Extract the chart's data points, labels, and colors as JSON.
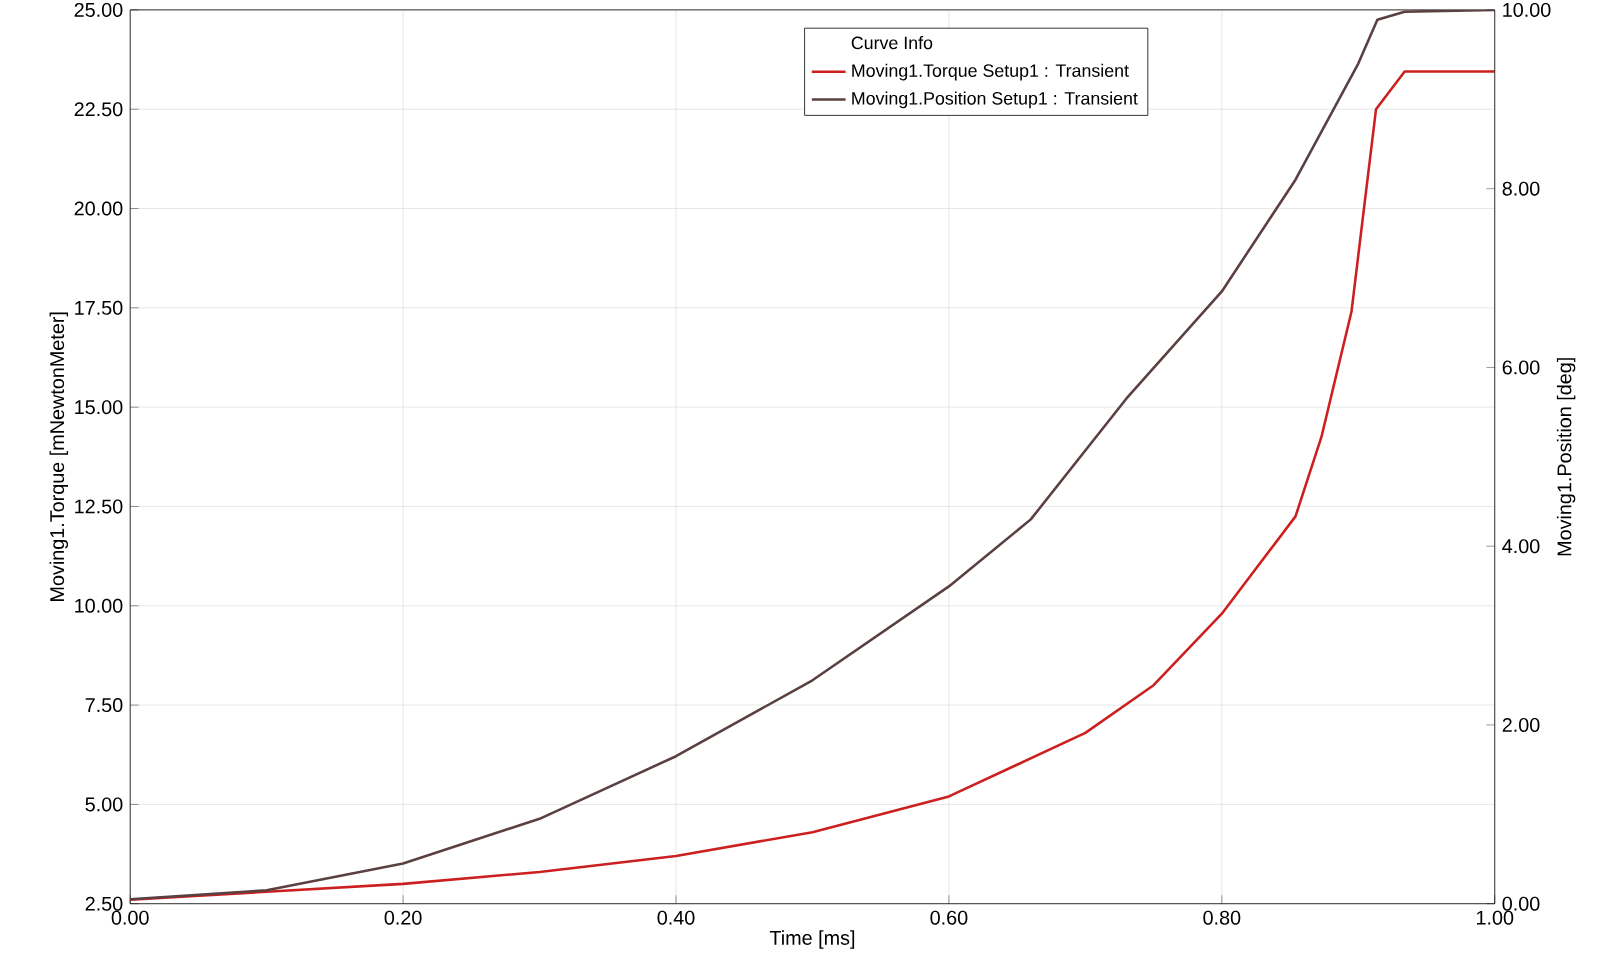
{
  "chart_data": {
    "type": "line",
    "xlabel": "Time [ms]",
    "ylabel": "Moving1.Torque [mNewtonMeter]",
    "y2label": "Moving1.Position [deg]",
    "legend_title": "Curve Info",
    "xlim": [
      0,
      1
    ],
    "ylim": [
      2.5,
      25
    ],
    "y2lim": [
      0,
      10
    ],
    "xticks": [
      {
        "value": 0,
        "label": "0.00"
      },
      {
        "value": 0.2,
        "label": "0.20"
      },
      {
        "value": 0.4,
        "label": "0.40"
      },
      {
        "value": 0.6,
        "label": "0.60"
      },
      {
        "value": 0.8,
        "label": "0.80"
      },
      {
        "value": 1,
        "label": "1.00"
      }
    ],
    "yticks": [
      {
        "value": 2.5,
        "label": "2.50"
      },
      {
        "value": 5,
        "label": "5.00"
      },
      {
        "value": 7.5,
        "label": "7.50"
      },
      {
        "value": 10,
        "label": "10.00"
      },
      {
        "value": 12.5,
        "label": "12.50"
      },
      {
        "value": 15,
        "label": "15.00"
      },
      {
        "value": 17.5,
        "label": "17.50"
      },
      {
        "value": 20,
        "label": "20.00"
      },
      {
        "value": 22.5,
        "label": "22.50"
      },
      {
        "value": 25,
        "label": "25.00"
      }
    ],
    "y2ticks": [
      {
        "value": 0,
        "label": "0.00"
      },
      {
        "value": 2,
        "label": "2.00"
      },
      {
        "value": 4,
        "label": "4.00"
      },
      {
        "value": 6,
        "label": "6.00"
      },
      {
        "value": 8,
        "label": "8.00"
      },
      {
        "value": 10,
        "label": "10.00"
      }
    ],
    "grid": true,
    "legend": "top",
    "series": [
      {
        "name": "Moving1.Torque Setup1 : Transient",
        "color": "#cc2020",
        "x": [
          0,
          0.1,
          0.2,
          0.3,
          0.4,
          0.5,
          0.6,
          0.7,
          0.75,
          0.8,
          0.854,
          0.873,
          0.895,
          0.913,
          0.934,
          1.0
        ],
        "values": [
          2.6,
          2.8,
          3.0,
          3.3,
          3.7,
          4.3,
          5.2,
          6.8,
          8.0,
          9.8,
          12.25,
          14.25,
          17.4,
          22.5,
          23.45,
          23.45
        ]
      },
      {
        "name": "Moving1.Position Setup1 : Transient",
        "color": "#5a4040",
        "axis": "y2",
        "x": [
          0,
          0.1,
          0.2,
          0.3,
          0.4,
          0.5,
          0.6,
          0.66,
          0.73,
          0.8,
          0.854,
          0.9,
          0.914,
          0.934,
          1.0
        ],
        "values": [
          0.05,
          0.15,
          0.45,
          0.95,
          1.65,
          2.5,
          3.55,
          4.3,
          5.65,
          6.85,
          8.1,
          9.4,
          9.89,
          9.98,
          10.0
        ]
      }
    ]
  }
}
